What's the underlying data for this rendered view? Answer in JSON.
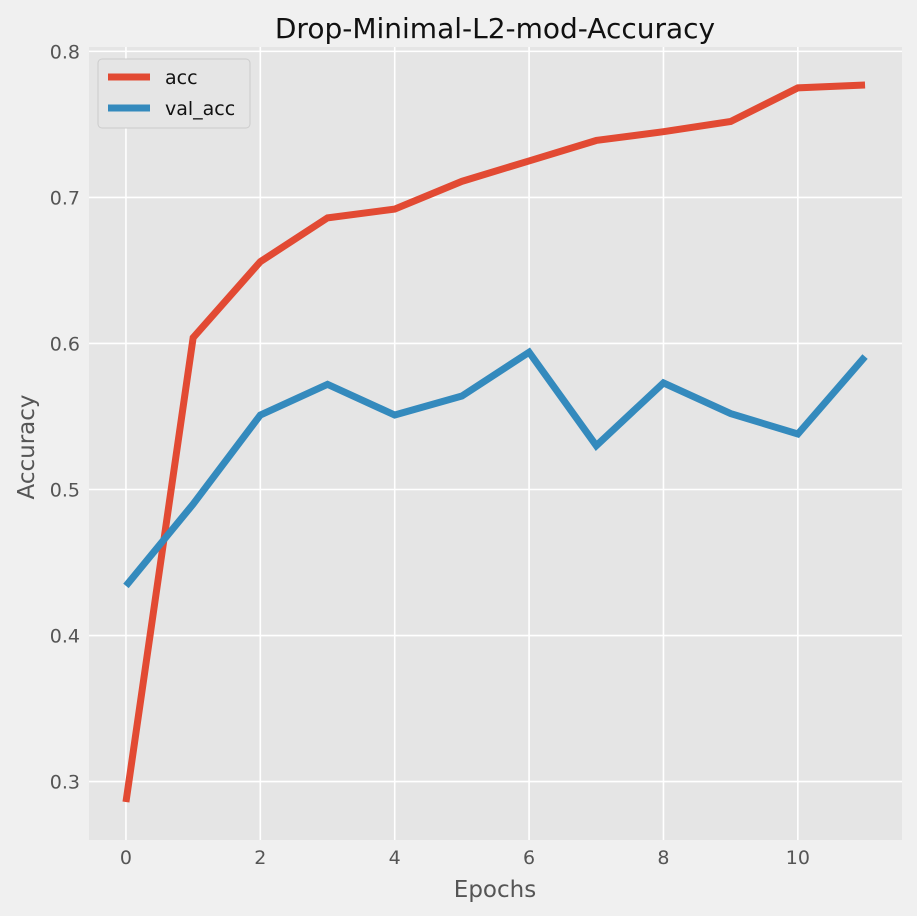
{
  "chart_data": {
    "type": "line",
    "title": "Drop-Minimal-L2-mod-Accuracy",
    "xlabel": "Epochs",
    "ylabel": "Accuracy",
    "x": [
      0,
      1,
      2,
      3,
      4,
      5,
      6,
      7,
      8,
      9,
      10,
      11
    ],
    "xlim": [
      -0.55,
      11.55
    ],
    "ylim": [
      0.26,
      0.803
    ],
    "xticks": [
      0,
      2,
      4,
      6,
      8,
      10
    ],
    "yticks": [
      0.3,
      0.4,
      0.5,
      0.6,
      0.7,
      0.8
    ],
    "xtick_labels": [
      "0",
      "2",
      "4",
      "6",
      "8",
      "10"
    ],
    "ytick_labels": [
      "0.3",
      "0.4",
      "0.5",
      "0.6",
      "0.7",
      "0.8"
    ],
    "grid": true,
    "legend_position": "upper-left",
    "series": [
      {
        "name": "acc",
        "color": "#E24A33",
        "values": [
          0.286,
          0.604,
          0.656,
          0.686,
          0.692,
          0.711,
          0.725,
          0.739,
          0.745,
          0.752,
          0.775,
          0.777
        ]
      },
      {
        "name": "val_acc",
        "color": "#348ABD",
        "values": [
          0.434,
          0.49,
          0.551,
          0.572,
          0.551,
          0.564,
          0.594,
          0.53,
          0.573,
          0.552,
          0.538,
          0.591
        ]
      }
    ]
  }
}
